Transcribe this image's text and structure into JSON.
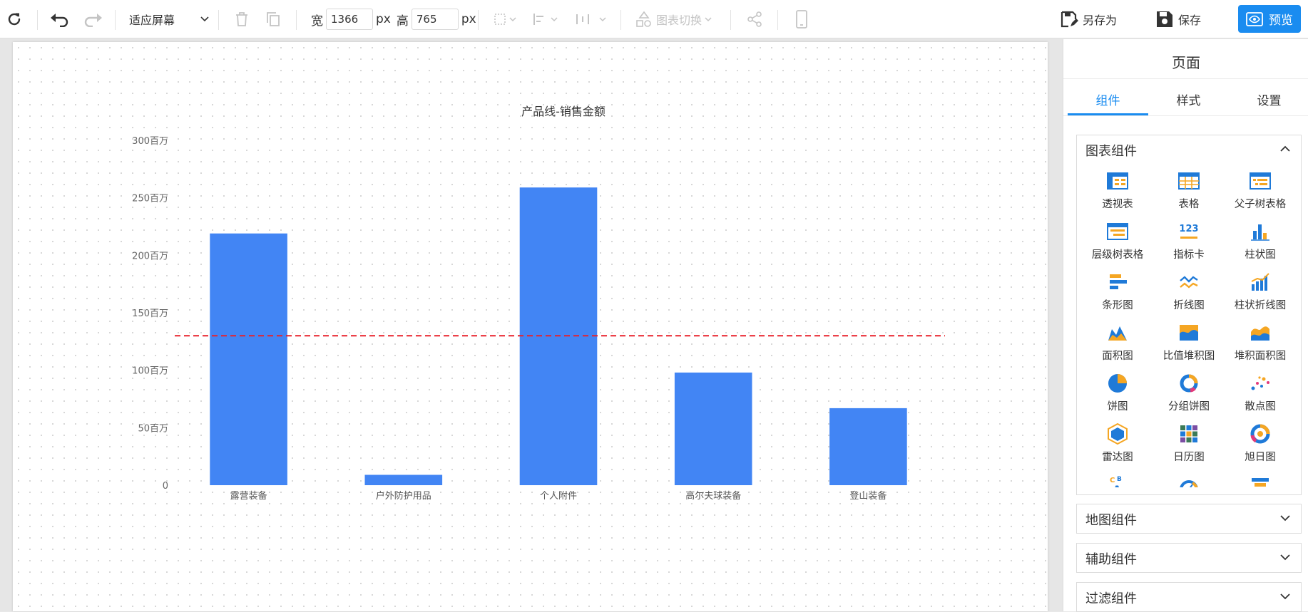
{
  "toolbar": {
    "zoom_select": "适应屏幕",
    "width_label": "宽",
    "width_value": "1366",
    "width_unit": "px",
    "height_label": "高",
    "height_value": "765",
    "height_unit": "px",
    "chart_switch": "图表切换",
    "save_as": "另存为",
    "save": "保存",
    "preview": "预览"
  },
  "panel": {
    "title": "页面",
    "tabs": [
      "组件",
      "样式",
      "设置"
    ],
    "active_tab": "组件",
    "groups": [
      {
        "label": "图表组件",
        "expanded": true
      },
      {
        "label": "地图组件",
        "expanded": false
      },
      {
        "label": "辅助组件",
        "expanded": false
      },
      {
        "label": "过滤组件",
        "expanded": false
      }
    ],
    "chart_items": [
      {
        "label": "透视表",
        "icon": "pivot-table-icon"
      },
      {
        "label": "表格",
        "icon": "table-icon"
      },
      {
        "label": "父子树表格",
        "icon": "parent-child-tree-table-icon"
      },
      {
        "label": "层级树表格",
        "icon": "hierarchy-tree-table-icon"
      },
      {
        "label": "指标卡",
        "icon": "kpi-card-icon"
      },
      {
        "label": "柱状图",
        "icon": "column-chart-icon"
      },
      {
        "label": "条形图",
        "icon": "bar-chart-icon"
      },
      {
        "label": "折线图",
        "icon": "line-chart-icon"
      },
      {
        "label": "柱状折线图",
        "icon": "column-line-chart-icon"
      },
      {
        "label": "面积图",
        "icon": "area-chart-icon"
      },
      {
        "label": "比值堆积图",
        "icon": "percent-stacked-chart-icon"
      },
      {
        "label": "堆积面积图",
        "icon": "stacked-area-chart-icon"
      },
      {
        "label": "饼图",
        "icon": "pie-chart-icon"
      },
      {
        "label": "分组饼图",
        "icon": "grouped-pie-chart-icon"
      },
      {
        "label": "散点图",
        "icon": "scatter-chart-icon"
      },
      {
        "label": "雷达图",
        "icon": "radar-chart-icon"
      },
      {
        "label": "日历图",
        "icon": "calendar-chart-icon"
      },
      {
        "label": "旭日图",
        "icon": "sunburst-chart-icon"
      },
      {
        "label": "",
        "icon": "word-cloud-icon"
      },
      {
        "label": "",
        "icon": "gauge-chart-icon"
      },
      {
        "label": "",
        "icon": "funnel-chart-icon"
      }
    ]
  },
  "colors": {
    "accent": "#1a8cf0",
    "bar": "#4285f4",
    "reference_line": "#e8202a",
    "icon_blue": "#1f7ad8",
    "icon_orange": "#f5a623"
  },
  "chart_data": {
    "type": "bar",
    "title": "产品线-销售金额",
    "categories": [
      "露营装备",
      "户外防护用品",
      "个人附件",
      "高尔夫球装备",
      "登山装备"
    ],
    "values": [
      219,
      9,
      259,
      98,
      67
    ],
    "value_unit": "百万",
    "ylim": [
      0,
      300
    ],
    "yticks": [
      0,
      50,
      100,
      150,
      200,
      250,
      300
    ],
    "ytick_labels": [
      "0",
      "50百万",
      "100百万",
      "150百万",
      "200百万",
      "250百万",
      "300百万"
    ],
    "reference_line": {
      "value": 130,
      "style": "dashed"
    },
    "grid": false,
    "legend": "none"
  }
}
